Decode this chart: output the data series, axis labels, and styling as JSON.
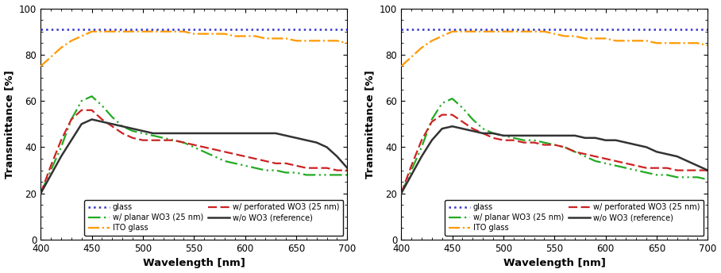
{
  "wavelength": [
    400,
    410,
    420,
    430,
    440,
    450,
    460,
    470,
    480,
    490,
    500,
    510,
    520,
    530,
    540,
    550,
    560,
    570,
    580,
    590,
    600,
    610,
    620,
    630,
    640,
    650,
    660,
    670,
    680,
    690,
    700
  ],
  "left": {
    "glass": [
      91,
      91,
      91,
      91,
      91,
      91,
      91,
      91,
      91,
      91,
      91,
      91,
      91,
      91,
      91,
      91,
      91,
      91,
      91,
      91,
      91,
      91,
      91,
      91,
      91,
      91,
      91,
      91,
      91,
      91,
      91
    ],
    "ito_glass": [
      75,
      79,
      83,
      86,
      88,
      90,
      90,
      90,
      90,
      90,
      90,
      90,
      90,
      90,
      90,
      89,
      89,
      89,
      89,
      88,
      88,
      88,
      87,
      87,
      87,
      86,
      86,
      86,
      86,
      86,
      85
    ],
    "wo3_ref": [
      20,
      28,
      36,
      43,
      50,
      52,
      51,
      50,
      49,
      48,
      47,
      46,
      46,
      46,
      46,
      46,
      46,
      46,
      46,
      46,
      46,
      46,
      46,
      46,
      45,
      44,
      43,
      42,
      40,
      36,
      31
    ],
    "planar": [
      20,
      30,
      40,
      52,
      60,
      62,
      58,
      53,
      49,
      47,
      46,
      45,
      44,
      43,
      42,
      40,
      38,
      36,
      34,
      33,
      32,
      31,
      30,
      30,
      29,
      29,
      28,
      28,
      28,
      28,
      28
    ],
    "perforated": [
      20,
      32,
      43,
      52,
      56,
      56,
      52,
      49,
      46,
      44,
      43,
      43,
      43,
      43,
      42,
      41,
      40,
      39,
      38,
      37,
      36,
      35,
      34,
      33,
      33,
      32,
      31,
      31,
      31,
      30,
      30
    ]
  },
  "right": {
    "glass": [
      91,
      91,
      91,
      91,
      91,
      91,
      91,
      91,
      91,
      91,
      91,
      91,
      91,
      91,
      91,
      91,
      91,
      91,
      91,
      91,
      91,
      91,
      91,
      91,
      91,
      91,
      91,
      91,
      91,
      91,
      91
    ],
    "ito_glass": [
      75,
      79,
      83,
      86,
      88,
      90,
      90,
      90,
      90,
      90,
      90,
      90,
      90,
      90,
      90,
      89,
      88,
      88,
      87,
      87,
      87,
      86,
      86,
      86,
      86,
      85,
      85,
      85,
      85,
      85,
      84
    ],
    "wo3_ref": [
      20,
      28,
      36,
      43,
      48,
      49,
      48,
      47,
      46,
      46,
      45,
      45,
      45,
      45,
      45,
      45,
      45,
      45,
      44,
      44,
      43,
      43,
      42,
      41,
      40,
      38,
      37,
      36,
      34,
      32,
      30
    ],
    "planar": [
      20,
      30,
      40,
      52,
      59,
      61,
      57,
      52,
      48,
      46,
      45,
      44,
      43,
      43,
      42,
      41,
      40,
      38,
      36,
      34,
      33,
      32,
      31,
      30,
      29,
      28,
      28,
      27,
      27,
      27,
      26
    ],
    "perforated": [
      20,
      32,
      43,
      51,
      54,
      54,
      51,
      48,
      46,
      44,
      43,
      43,
      42,
      42,
      41,
      41,
      40,
      38,
      37,
      36,
      35,
      34,
      33,
      32,
      31,
      31,
      31,
      30,
      30,
      30,
      30
    ]
  },
  "colors": {
    "glass": "#3333cc",
    "ito_glass": "#ff9900",
    "wo3_ref": "#333333",
    "planar": "#22aa22",
    "perforated": "#cc2222"
  },
  "legend_labels": {
    "glass": "glass",
    "ito_glass": "ITO glass",
    "wo3_ref": "w/o WO3 (reference)",
    "planar": "w/ planar WO3 (25 nm)",
    "perforated": "w/ perforated WO3 (25 nm)"
  },
  "xlim": [
    400,
    700
  ],
  "ylim": [
    0,
    100
  ],
  "xlabel": "Wavelength [nm]",
  "ylabel": "Transmittance [%]",
  "xticks": [
    400,
    450,
    500,
    550,
    600,
    650,
    700
  ],
  "yticks": [
    0,
    20,
    40,
    60,
    80,
    100
  ],
  "figsize": [
    9.08,
    3.44
  ],
  "dpi": 100
}
